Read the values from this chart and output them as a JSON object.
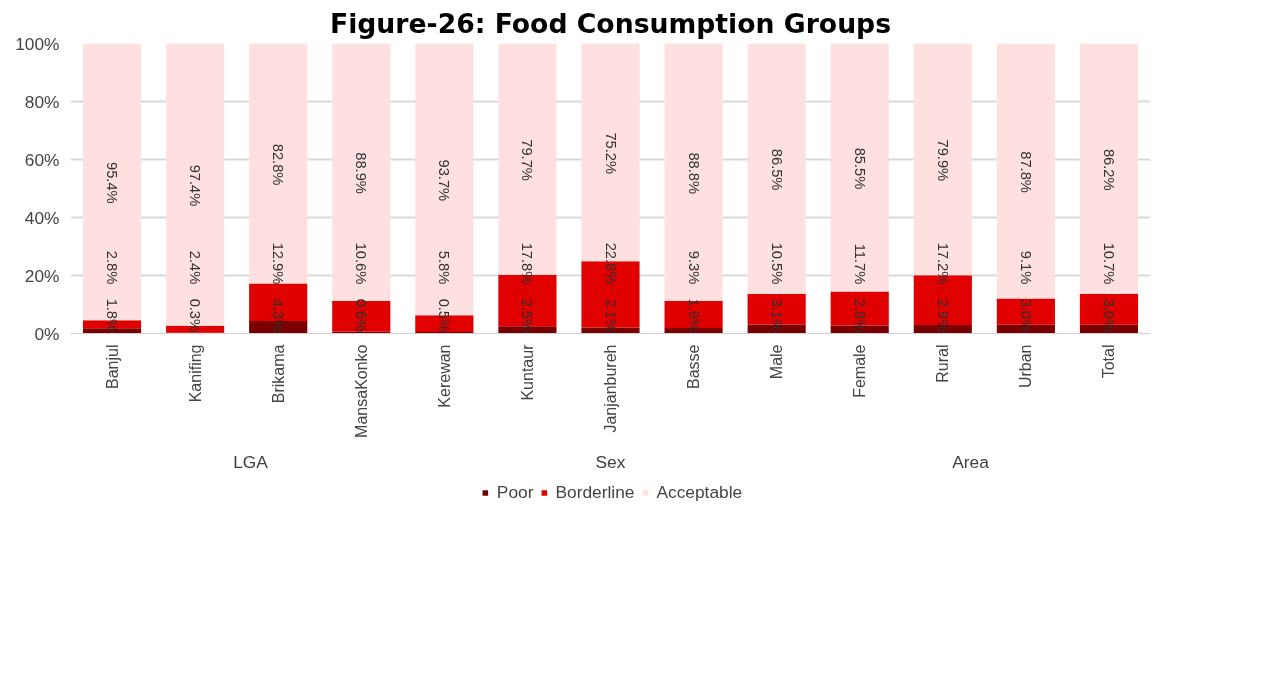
{
  "chart_data": {
    "type": "bar",
    "title": "Figure-26: Food Consumption Groups",
    "stacked": true,
    "categories": [
      "Banjul",
      "Kanifing",
      "Brikama",
      "MansaKonko",
      "Kerewan",
      "Kuntaur",
      "Janjanbureh",
      "Basse",
      "Male",
      "Female",
      "Rural",
      "Urban",
      "Total"
    ],
    "series": [
      {
        "name": "Poor",
        "color": "#7a0000",
        "values": [
          1.8,
          0.3,
          4.3,
          0.6,
          0.5,
          2.5,
          2.1,
          1.9,
          3.1,
          2.8,
          2.9,
          3.0,
          3.0
        ],
        "value_labels": [
          "1.8%",
          "0.3%",
          "4.3%",
          "0.6%",
          "0.5%",
          "2.5%",
          "2.1%",
          "1.9%",
          "3.1%",
          "2.8%",
          "2.9%",
          "3.0%",
          "3.0%"
        ]
      },
      {
        "name": "Borderline",
        "color": "#e00000",
        "values": [
          2.8,
          2.4,
          12.9,
          10.6,
          5.8,
          17.8,
          22.8,
          9.3,
          10.5,
          11.7,
          17.2,
          9.1,
          10.7
        ],
        "value_labels": [
          "2.8%",
          "2.4%",
          "12.9%",
          "10.6%",
          "5.8%",
          "17.8%",
          "22.8%",
          "9.3%",
          "10.5%",
          "11.7%",
          "17.2%",
          "9.1%",
          "10.7%"
        ]
      },
      {
        "name": "Acceptable",
        "color": "#ffe0e0",
        "values": [
          95.4,
          97.4,
          82.8,
          88.9,
          93.7,
          79.7,
          75.2,
          88.8,
          86.5,
          85.5,
          79.9,
          87.8,
          86.2
        ],
        "value_labels": [
          "95.4%",
          "97.4%",
          "82.8%",
          "88.9%",
          "93.7%",
          "79.7%",
          "75.2%",
          "88.8%",
          "86.5%",
          "85.5%",
          "79.9%",
          "87.8%",
          "86.2%"
        ]
      }
    ],
    "ylim": [
      0,
      100
    ],
    "yticks": [
      {
        "value": 0,
        "label": "0%"
      },
      {
        "value": 20,
        "label": "20%"
      },
      {
        "value": 40,
        "label": "40%"
      },
      {
        "value": 60,
        "label": "60%"
      },
      {
        "value": 80,
        "label": "80%"
      },
      {
        "value": 100,
        "label": "100%"
      }
    ],
    "annotations": [
      "LGA",
      "Sex",
      "Area"
    ],
    "grid": "y",
    "legend": "bottom"
  }
}
